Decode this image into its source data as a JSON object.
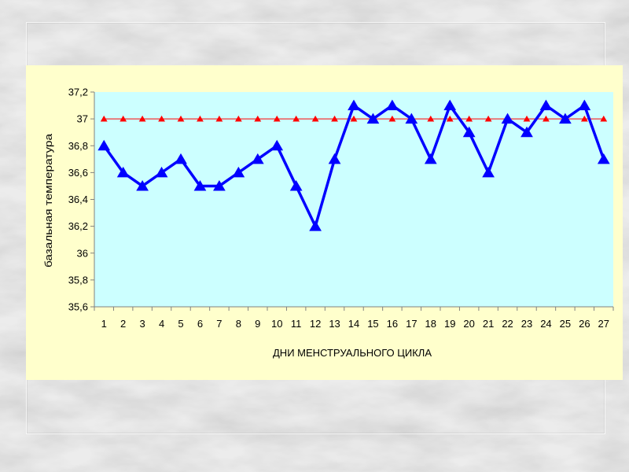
{
  "chart_data": {
    "type": "line",
    "xlabel": "ДНИ МЕНСТРУАЛЬНОГО ЦИКЛА",
    "ylabel": "базальная температура",
    "x": [
      1,
      2,
      3,
      4,
      5,
      6,
      7,
      8,
      9,
      10,
      11,
      12,
      13,
      14,
      15,
      16,
      17,
      18,
      19,
      20,
      21,
      22,
      23,
      24,
      25,
      26,
      27
    ],
    "ylim": [
      35.6,
      37.2
    ],
    "yticks": [
      "35,6",
      "35,8",
      "36",
      "36,2",
      "36,4",
      "36,6",
      "36,8",
      "37",
      "37,2"
    ],
    "ytick_values": [
      35.6,
      35.8,
      36.0,
      36.2,
      36.4,
      36.6,
      36.8,
      37.0,
      37.2
    ],
    "plot_background": "#ccffff",
    "grid": false,
    "series": [
      {
        "color": "#0000ff",
        "marker": "triangle",
        "values": [
          36.8,
          36.6,
          36.5,
          36.6,
          36.7,
          36.5,
          36.5,
          36.6,
          36.7,
          36.8,
          36.5,
          36.2,
          36.7,
          37.1,
          37.0,
          37.1,
          37.0,
          36.7,
          37.1,
          36.9,
          36.6,
          37.0,
          36.9,
          37.1,
          37.0,
          37.1,
          36.7
        ]
      },
      {
        "color": "#ff0000",
        "marker": "triangle",
        "values": [
          37,
          37,
          37,
          37,
          37,
          37,
          37,
          37,
          37,
          37,
          37,
          37,
          37,
          37,
          37,
          37,
          37,
          37,
          37,
          37,
          37,
          37,
          37,
          37,
          37,
          37,
          37
        ]
      }
    ]
  }
}
